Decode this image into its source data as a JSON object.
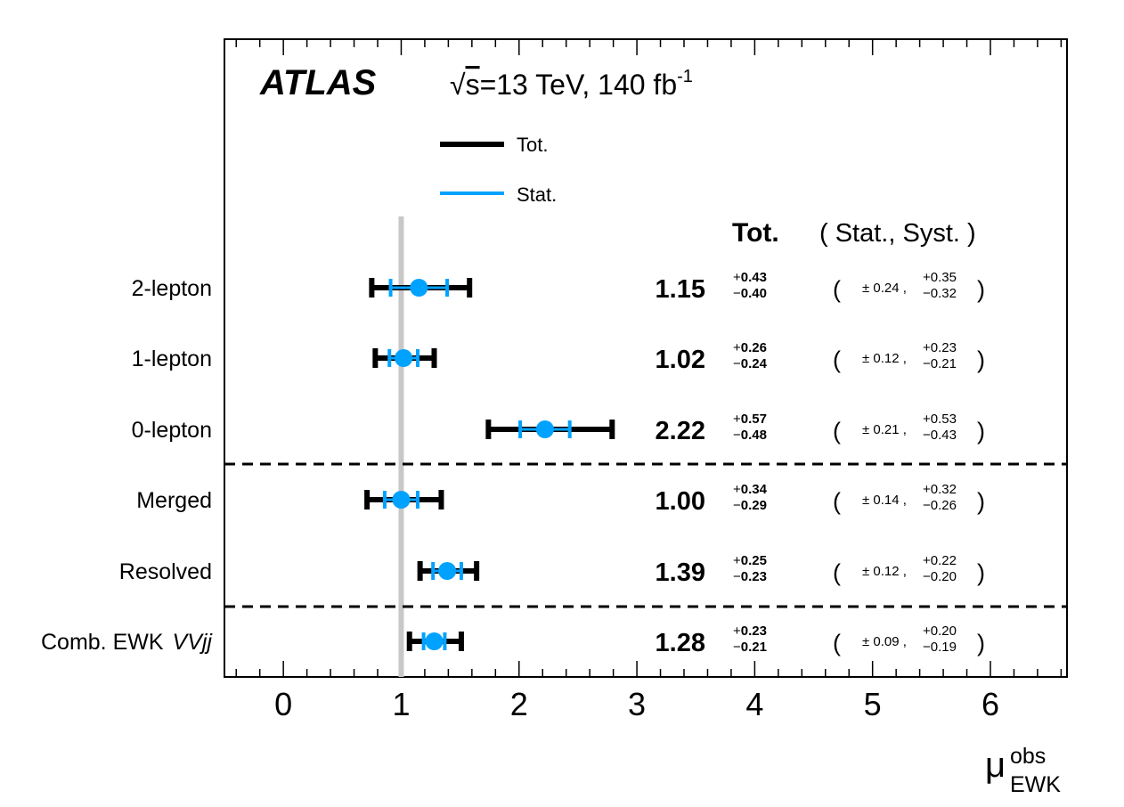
{
  "chart_data": {
    "type": "errorbar",
    "experiment_label": "ATLAS",
    "energy_label": {
      "sqrt": "√",
      "s": "s",
      "rest": "=13 TeV, 140 fb",
      "sup": "-1"
    },
    "legend": [
      {
        "name": "Tot.",
        "color": "#000000"
      },
      {
        "name": "Stat.",
        "color": "#00a2ff"
      }
    ],
    "columns": {
      "tot_header": "Tot.",
      "breakdown_header": "( Stat., Syst. )"
    },
    "xlabel": {
      "main": "μ",
      "sup": "obs",
      "sub": "EWK"
    },
    "xlim": [
      -0.5,
      6.65
    ],
    "xticks": [
      "0",
      "1",
      "2",
      "3",
      "4",
      "5",
      "6"
    ],
    "reference_line": 1,
    "categories": [
      {
        "label": "2-lepton",
        "value": 1.15,
        "value_text": "1.15",
        "tot_up": 0.43,
        "tot_down": 0.4,
        "tot_up_text": "0.43",
        "tot_down_text": "0.40",
        "stat_text": "0.24",
        "stat": 0.24,
        "syst_up_text": "0.35",
        "syst_down_text": "0.32"
      },
      {
        "label": "1-lepton",
        "value": 1.02,
        "value_text": "1.02",
        "tot_up": 0.26,
        "tot_down": 0.24,
        "tot_up_text": "0.26",
        "tot_down_text": "0.24",
        "stat_text": "0.12",
        "stat": 0.12,
        "syst_up_text": "0.23",
        "syst_down_text": "0.21"
      },
      {
        "label": "0-lepton",
        "value": 2.22,
        "value_text": "2.22",
        "tot_up": 0.57,
        "tot_down": 0.48,
        "tot_up_text": "0.57",
        "tot_down_text": "0.48",
        "stat_text": "0.21",
        "stat": 0.21,
        "syst_up_text": "0.53",
        "syst_down_text": "0.43"
      },
      {
        "label": "Merged",
        "value": 1.0,
        "value_text": "1.00",
        "tot_up": 0.34,
        "tot_down": 0.29,
        "tot_up_text": "0.34",
        "tot_down_text": "0.29",
        "stat_text": "0.14",
        "stat": 0.14,
        "syst_up_text": "0.32",
        "syst_down_text": "0.26"
      },
      {
        "label": "Resolved",
        "value": 1.39,
        "value_text": "1.39",
        "tot_up": 0.25,
        "tot_down": 0.23,
        "tot_up_text": "0.25",
        "tot_down_text": "0.23",
        "stat_text": "0.12",
        "stat": 0.12,
        "syst_up_text": "0.22",
        "syst_down_text": "0.20"
      },
      {
        "label": "Comb. EWK",
        "label_italic": "VVjj",
        "value": 1.28,
        "value_text": "1.28",
        "tot_up": 0.23,
        "tot_down": 0.21,
        "tot_up_text": "0.23",
        "tot_down_text": "0.21",
        "stat_text": "0.09",
        "stat": 0.09,
        "syst_up_text": "0.20",
        "syst_down_text": "0.19"
      }
    ],
    "separators_after": [
      "0-lepton",
      "Resolved"
    ]
  }
}
